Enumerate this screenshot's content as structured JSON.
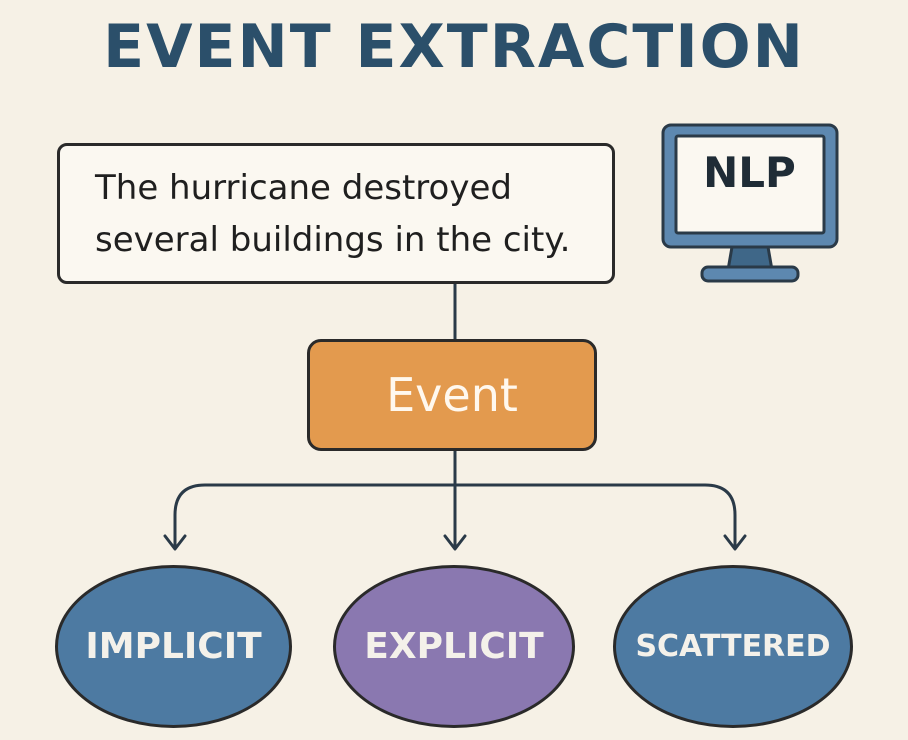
{
  "title": "EVENT EXTRACTION",
  "sentence": {
    "line1": "The hurricane destroyed",
    "line2": "several buildings in the city."
  },
  "monitor": {
    "label": "NLP",
    "icon": "monitor-icon"
  },
  "event": {
    "label": "Event"
  },
  "categories": [
    {
      "label": "IMPLICIT"
    },
    {
      "label": "EXPLICIT"
    },
    {
      "label": "SCATTERED"
    }
  ],
  "colors": {
    "background": "#f6f1e6",
    "title": "#2b4f6a",
    "event_fill": "#e39a4e",
    "implicit_fill": "#4d7aa2",
    "explicit_fill": "#8a78b0",
    "scattered_fill": "#4d7aa2",
    "monitor_fill": "#5d88b0"
  }
}
